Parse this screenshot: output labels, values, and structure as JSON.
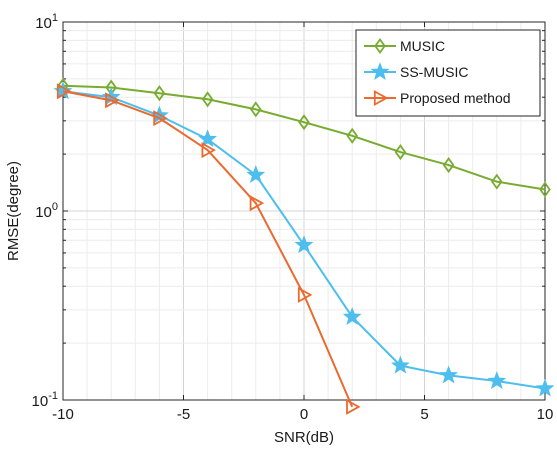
{
  "chart_data": {
    "type": "line",
    "xlabel": "SNR(dB)",
    "ylabel": "RMSE(degree)",
    "xlim": [
      -10,
      10
    ],
    "ylim": [
      0.1,
      10
    ],
    "y_scale": "log",
    "x_ticks": [
      {
        "value": -10,
        "label": "-10"
      },
      {
        "value": -5,
        "label": "-5"
      },
      {
        "value": 0,
        "label": "0"
      },
      {
        "value": 5,
        "label": "5"
      },
      {
        "value": 10,
        "label": "10"
      }
    ],
    "y_ticks": [
      {
        "value": 0.1,
        "base": "10",
        "exp": "-1"
      },
      {
        "value": 1,
        "base": "10",
        "exp": "0"
      },
      {
        "value": 10,
        "base": "10",
        "exp": "1"
      }
    ],
    "grid": true,
    "legend_position": "top-right",
    "series": [
      {
        "name": "MUSIC",
        "color": "#77ac30",
        "marker": "diamond",
        "x": [
          -10,
          -8,
          -6,
          -4,
          -2,
          0,
          2,
          4,
          6,
          8,
          10
        ],
        "y": [
          4.6,
          4.5,
          4.2,
          3.9,
          3.45,
          2.95,
          2.5,
          2.05,
          1.75,
          1.43,
          1.3
        ]
      },
      {
        "name": "SS-MUSIC",
        "color": "#4dbeee",
        "marker": "star",
        "x": [
          -10,
          -8,
          -6,
          -4,
          -2,
          0,
          2,
          4,
          6,
          8,
          10
        ],
        "y": [
          4.3,
          4.0,
          3.2,
          2.4,
          1.55,
          0.66,
          0.275,
          0.152,
          0.135,
          0.126,
          0.115
        ]
      },
      {
        "name": "Proposed method",
        "color": "#ea6a2f",
        "marker": "triangle-right",
        "x": [
          -10,
          -8,
          -6,
          -4,
          -2,
          0,
          2
        ],
        "y": [
          4.3,
          3.85,
          3.1,
          2.1,
          1.1,
          0.36,
          0.092
        ]
      }
    ]
  }
}
